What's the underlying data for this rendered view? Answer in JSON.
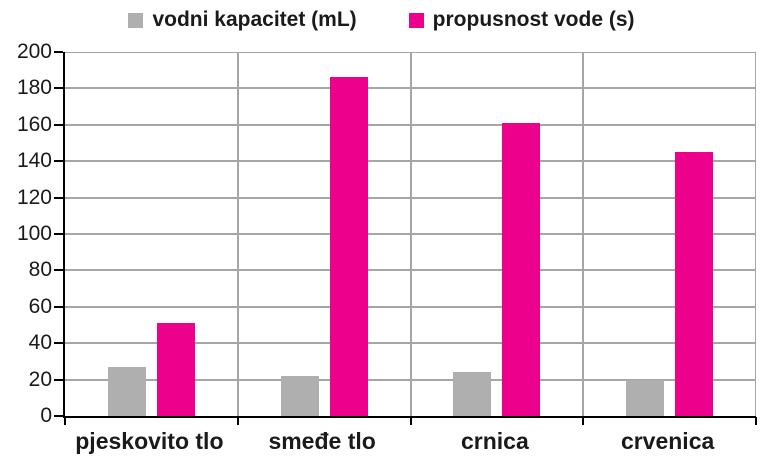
{
  "chart_data": {
    "type": "bar",
    "title": "",
    "categories": [
      "pjeskovito tlo",
      "smeđe tlo",
      "crnica",
      "crvenica"
    ],
    "series": [
      {
        "name": "vodni kapacitet (mL)",
        "color": "#afafaf",
        "values": [
          27,
          22,
          24,
          20
        ]
      },
      {
        "name": "propusnost vode (s)",
        "color": "#ec008c",
        "values": [
          51,
          186,
          161,
          145
        ]
      }
    ],
    "ylim": [
      0,
      200
    ],
    "ytick_step": 20,
    "ytick_labels": [
      "0",
      "20",
      "40",
      "60",
      "80",
      "100",
      "120",
      "140",
      "160",
      "180",
      "200"
    ],
    "legend_position": "top",
    "grid": true
  },
  "colors": {
    "gridline": "#a6a6a6",
    "axis": "#000000",
    "text": "#1a1a1a",
    "background": "#ffffff"
  }
}
